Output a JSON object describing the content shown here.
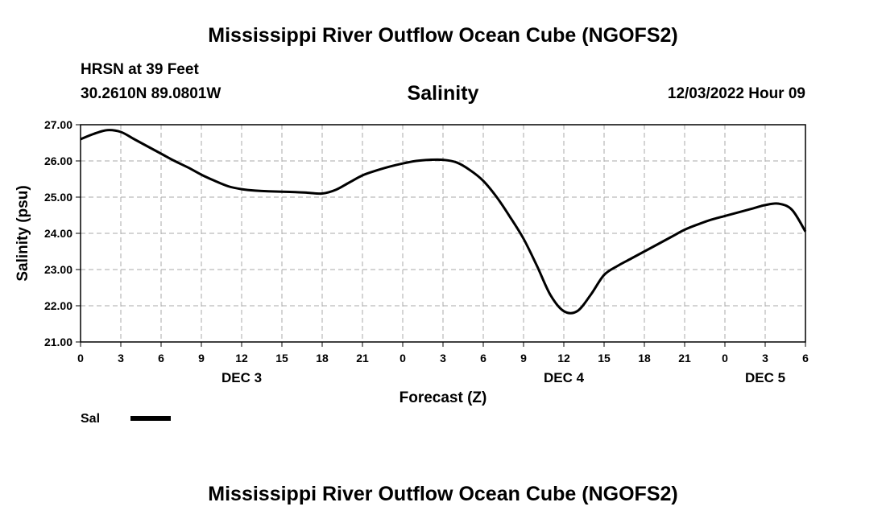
{
  "header": {
    "title": "Mississippi River Outflow Ocean Cube (NGOFS2)",
    "station": "HRSN at 39 Feet",
    "coords": "30.2610N  89.0801W",
    "variable": "Salinity",
    "datetime": "12/03/2022 Hour 09"
  },
  "footer": {
    "title": "Mississippi River Outflow Ocean Cube (NGOFS2)"
  },
  "chart_data": {
    "type": "line",
    "title": "Salinity",
    "xlabel": "Forecast (Z)",
    "ylabel": "Salinity (psu)",
    "xlim": [
      0,
      54
    ],
    "ylim": [
      21.0,
      27.0
    ],
    "grid": true,
    "yticks": [
      21.0,
      22.0,
      23.0,
      24.0,
      25.0,
      26.0,
      27.0
    ],
    "ytick_labels": [
      "21.00",
      "22.00",
      "23.00",
      "24.00",
      "25.00",
      "26.00",
      "27.00"
    ],
    "xticks": [
      0,
      3,
      6,
      9,
      12,
      15,
      18,
      21,
      24,
      27,
      30,
      33,
      36,
      39,
      42,
      45,
      48,
      51,
      54
    ],
    "xtick_labels": [
      "0",
      "3",
      "6",
      "9",
      "12",
      "15",
      "18",
      "21",
      "0",
      "3",
      "6",
      "9",
      "12",
      "15",
      "18",
      "21",
      "0",
      "3",
      "6"
    ],
    "day_labels": [
      {
        "x": 12,
        "label": "DEC 3"
      },
      {
        "x": 36,
        "label": "DEC 4"
      },
      {
        "x": 51,
        "label": "DEC 5"
      }
    ],
    "legend": {
      "position": "bottom-left",
      "entries": [
        {
          "name": "Sal",
          "color": "#000000"
        }
      ]
    },
    "series": [
      {
        "name": "Sal",
        "color": "#000000",
        "x": [
          0,
          1,
          2,
          3,
          4,
          5,
          6,
          7,
          8,
          9,
          10,
          11,
          12,
          13,
          14,
          15,
          16,
          17,
          18,
          19,
          20,
          21,
          22,
          23,
          24,
          25,
          26,
          27,
          28,
          29,
          30,
          31,
          32,
          33,
          34,
          35,
          36,
          37,
          38,
          39,
          40,
          41,
          42,
          43,
          44,
          45,
          46,
          47,
          48,
          49,
          50,
          51,
          52,
          53,
          54
        ],
        "values": [
          26.6,
          26.75,
          26.85,
          26.8,
          26.6,
          26.4,
          26.2,
          26.0,
          25.82,
          25.62,
          25.45,
          25.3,
          25.22,
          25.18,
          25.16,
          25.15,
          25.14,
          25.12,
          25.1,
          25.2,
          25.4,
          25.6,
          25.73,
          25.84,
          25.93,
          26.0,
          26.03,
          26.03,
          25.96,
          25.75,
          25.45,
          25.0,
          24.45,
          23.85,
          23.1,
          22.3,
          21.85,
          21.85,
          22.3,
          22.85,
          23.1,
          23.3,
          23.5,
          23.7,
          23.9,
          24.1,
          24.25,
          24.38,
          24.48,
          24.58,
          24.68,
          24.78,
          24.82,
          24.65,
          24.05
        ]
      }
    ]
  }
}
